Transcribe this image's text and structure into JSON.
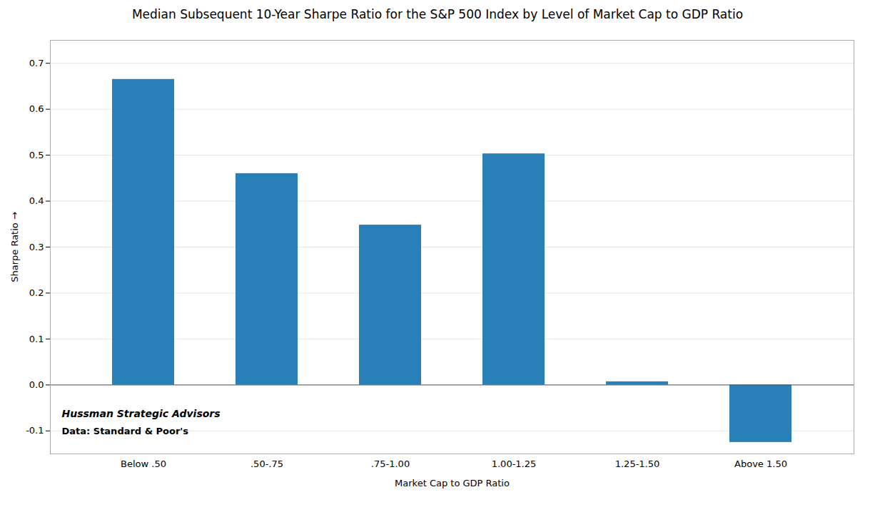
{
  "chart_data": {
    "type": "bar",
    "title": "Median Subsequent 10-Year Sharpe Ratio for the S&P 500 Index by Level of Market Cap to GDP Ratio",
    "xlabel": "Market Cap to GDP Ratio",
    "ylabel": "Sharpe Ratio",
    "categories": [
      "Below .50",
      ".50-.75",
      ".75-1.00",
      "1.00-1.25",
      "1.25-1.50",
      "Above 1.50"
    ],
    "values": [
      0.665,
      0.46,
      0.348,
      0.503,
      0.007,
      -0.125
    ],
    "color": "#2980b9",
    "ylim": [
      -0.15,
      0.75
    ],
    "yticks": [
      -0.1,
      {
        "value": 0.0,
        "label": "0.0"
      },
      0.1,
      0.2,
      0.3,
      0.4,
      0.5,
      0.6,
      0.7
    ],
    "grid": true,
    "annotations": [
      "Hussman Strategic Advisors",
      "Data: Standard & Poor's"
    ]
  }
}
